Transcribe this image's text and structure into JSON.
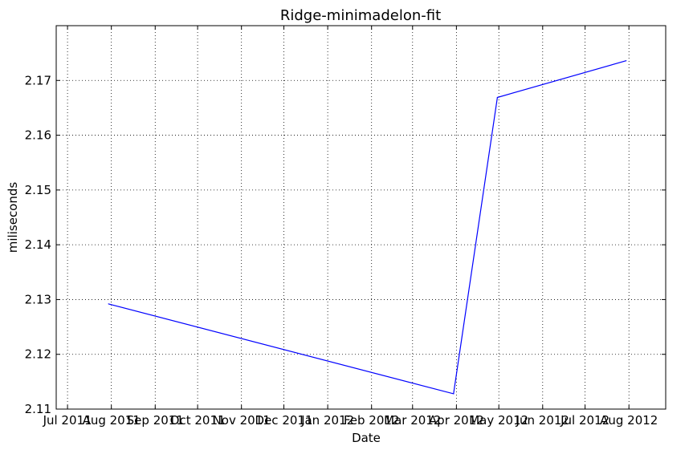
{
  "chart_data": {
    "type": "line",
    "title": "Ridge-minimadelon-fit",
    "xlabel": "Date",
    "ylabel": "miliseconds",
    "x_axis_type": "date",
    "xlim": [
      "2011-06-23",
      "2012-08-27"
    ],
    "ylim": [
      2.11,
      2.18
    ],
    "grid": true,
    "x_ticks": [
      {
        "date": "2011-07-01",
        "label": "Jul 2011"
      },
      {
        "date": "2011-08-01",
        "label": "Aug 2011"
      },
      {
        "date": "2011-09-01",
        "label": "Sep 2011"
      },
      {
        "date": "2011-10-01",
        "label": "Oct 2011"
      },
      {
        "date": "2011-11-01",
        "label": "Nov 2011"
      },
      {
        "date": "2011-12-01",
        "label": "Dec 2011"
      },
      {
        "date": "2012-01-01",
        "label": "Jan 2012"
      },
      {
        "date": "2012-02-01",
        "label": "Feb 2012"
      },
      {
        "date": "2012-03-01",
        "label": "Mar 2012"
      },
      {
        "date": "2012-04-01",
        "label": "Apr 2012"
      },
      {
        "date": "2012-05-01",
        "label": "May 2012"
      },
      {
        "date": "2012-06-01",
        "label": "Jun 2012"
      },
      {
        "date": "2012-07-01",
        "label": "Jul 2012"
      },
      {
        "date": "2012-08-01",
        "label": "Aug 2012"
      }
    ],
    "y_ticks": [
      2.11,
      2.12,
      2.13,
      2.14,
      2.15,
      2.16,
      2.17
    ],
    "series": [
      {
        "color": "#0000ff",
        "points": [
          {
            "x": "2011-07-30",
            "y": 2.1292
          },
          {
            "x": "2012-03-30",
            "y": 2.1128
          },
          {
            "x": "2012-04-30",
            "y": 2.1669
          },
          {
            "x": "2012-07-30",
            "y": 2.1736
          }
        ]
      }
    ]
  }
}
